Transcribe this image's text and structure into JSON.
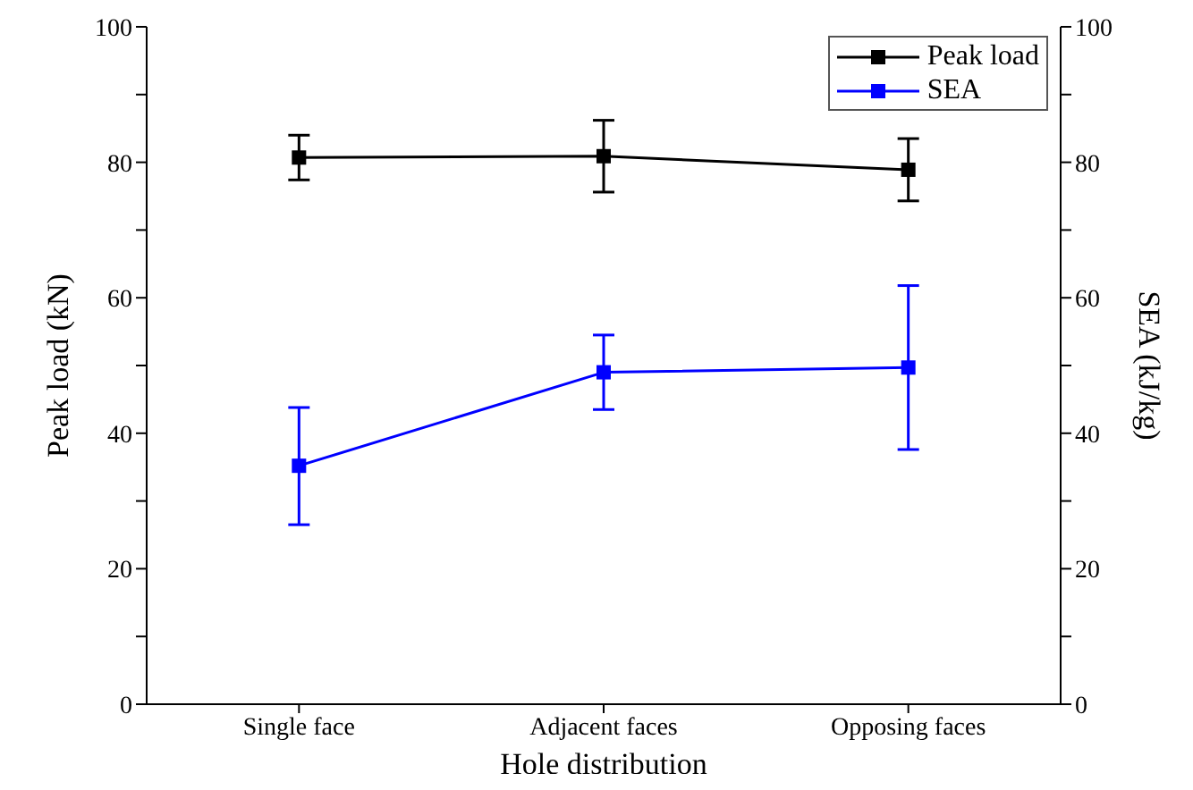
{
  "chart_data": {
    "type": "line",
    "xlabel": "Hole distribution",
    "ylabel": "Peak load (kN)",
    "y2label": "SEA (kJ/kg)",
    "categories": [
      "Single face",
      "Adjacent faces",
      "Opposing faces"
    ],
    "series": [
      {
        "name": "Peak load",
        "color": "#000000",
        "values": [
          80.7,
          80.9,
          78.9
        ],
        "errors": [
          [
            77.4,
            84.0
          ],
          [
            75.6,
            86.2
          ],
          [
            74.3,
            83.5
          ]
        ]
      },
      {
        "name": "SEA",
        "color": "#0000ff",
        "axis": "y2",
        "values": [
          35.2,
          49.0,
          49.7
        ],
        "errors": [
          [
            26.5,
            43.8
          ],
          [
            43.5,
            54.5
          ],
          [
            37.6,
            61.8
          ]
        ]
      }
    ],
    "ylim": [
      0,
      100
    ],
    "yticks": [
      0,
      {
        "value": 10,
        "label": null
      },
      20,
      {
        "value": 30,
        "label": null
      },
      40,
      {
        "value": 50,
        "label": null
      },
      60,
      {
        "value": 70,
        "label": null
      },
      80,
      {
        "value": 90,
        "label": null
      },
      100
    ],
    "y2lim": [
      0,
      100
    ],
    "y2ticks": [
      0,
      {
        "value": 10,
        "label": null
      },
      20,
      {
        "value": 30,
        "label": null
      },
      40,
      {
        "value": 50,
        "label": null
      },
      60,
      {
        "value": 70,
        "label": null
      },
      80,
      {
        "value": 90,
        "label": null
      },
      100
    ],
    "legend": "top right",
    "marker": "square",
    "line_style": "solid",
    "grid": false
  }
}
